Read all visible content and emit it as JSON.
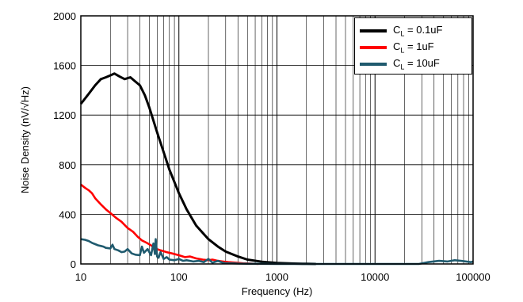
{
  "chart_data": {
    "type": "line",
    "title": "",
    "xlabel": "Frequency (Hz)",
    "ylabel": "Noise Density (nV/√Hz)",
    "x_scale": "log",
    "xlim": [
      10,
      100000
    ],
    "ylim": [
      0,
      2000
    ],
    "x_ticks": [
      "10",
      "100",
      "1000",
      "10000",
      "100000"
    ],
    "y_ticks": [
      "0",
      "400",
      "800",
      "1200",
      "1600",
      "2000"
    ],
    "grid": "on",
    "legend_position": "top-right",
    "series": [
      {
        "name": "C_L = 0.1uF",
        "label_main": "C",
        "label_sub": "L",
        "label_rest": " = 0.1uF",
        "color": "#000000",
        "x": [
          10,
          12,
          14,
          16,
          18,
          20,
          22,
          25,
          28,
          32,
          36,
          40,
          45,
          50,
          60,
          70,
          80,
          100,
          120,
          150,
          200,
          250,
          300,
          400,
          500,
          700,
          1000,
          1500,
          2000,
          2500
        ],
        "y": [
          1290,
          1370,
          1440,
          1490,
          1505,
          1520,
          1535,
          1510,
          1490,
          1505,
          1470,
          1440,
          1360,
          1260,
          1060,
          900,
          760,
          570,
          440,
          310,
          200,
          140,
          100,
          60,
          35,
          18,
          8,
          3,
          1,
          0
        ]
      },
      {
        "name": "C_L = 1uF",
        "label_main": "C",
        "label_sub": "L",
        "label_rest": " = 1uF",
        "color": "#ff0000",
        "x": [
          10,
          11,
          12,
          13,
          14,
          16,
          18,
          20,
          23,
          26,
          30,
          34,
          38,
          42,
          47,
          52,
          57,
          65,
          75,
          85,
          100,
          115,
          130,
          150,
          175,
          200,
          220,
          250,
          280,
          320,
          380,
          450,
          550,
          650
        ],
        "y": [
          640,
          615,
          595,
          570,
          530,
          480,
          440,
          410,
          370,
          340,
          290,
          260,
          220,
          190,
          170,
          150,
          125,
          110,
          95,
          85,
          70,
          55,
          60,
          45,
          35,
          30,
          35,
          25,
          20,
          15,
          10,
          5,
          3,
          0
        ]
      },
      {
        "name": "C_L = 10uF",
        "label_main": "C",
        "label_sub": "L",
        "label_rest": " = 10uF",
        "color": "#1f5a6e",
        "x": [
          10,
          11,
          12,
          13,
          14,
          15,
          16,
          17,
          18,
          20,
          21,
          22,
          24,
          26,
          28,
          30,
          33,
          36,
          40,
          42,
          44,
          48,
          52,
          55,
          57,
          58,
          60,
          62,
          65,
          70,
          75,
          80,
          90,
          100,
          110,
          120,
          140,
          160,
          180,
          200,
          220,
          250,
          280,
          300,
          350,
          400,
          500,
          1000,
          3000,
          10000,
          28000,
          35000,
          45000,
          55000,
          65000,
          75000,
          85000,
          95000,
          100000
        ],
        "y": [
          200,
          195,
          185,
          170,
          160,
          150,
          145,
          140,
          130,
          125,
          155,
          120,
          110,
          95,
          100,
          120,
          85,
          75,
          70,
          140,
          90,
          120,
          70,
          165,
          80,
          200,
          60,
          50,
          95,
          40,
          55,
          35,
          30,
          40,
          25,
          30,
          20,
          25,
          15,
          40,
          10,
          25,
          10,
          5,
          5,
          3,
          2,
          0,
          0,
          0,
          0,
          15,
          25,
          20,
          30,
          25,
          20,
          15,
          20
        ]
      }
    ]
  }
}
